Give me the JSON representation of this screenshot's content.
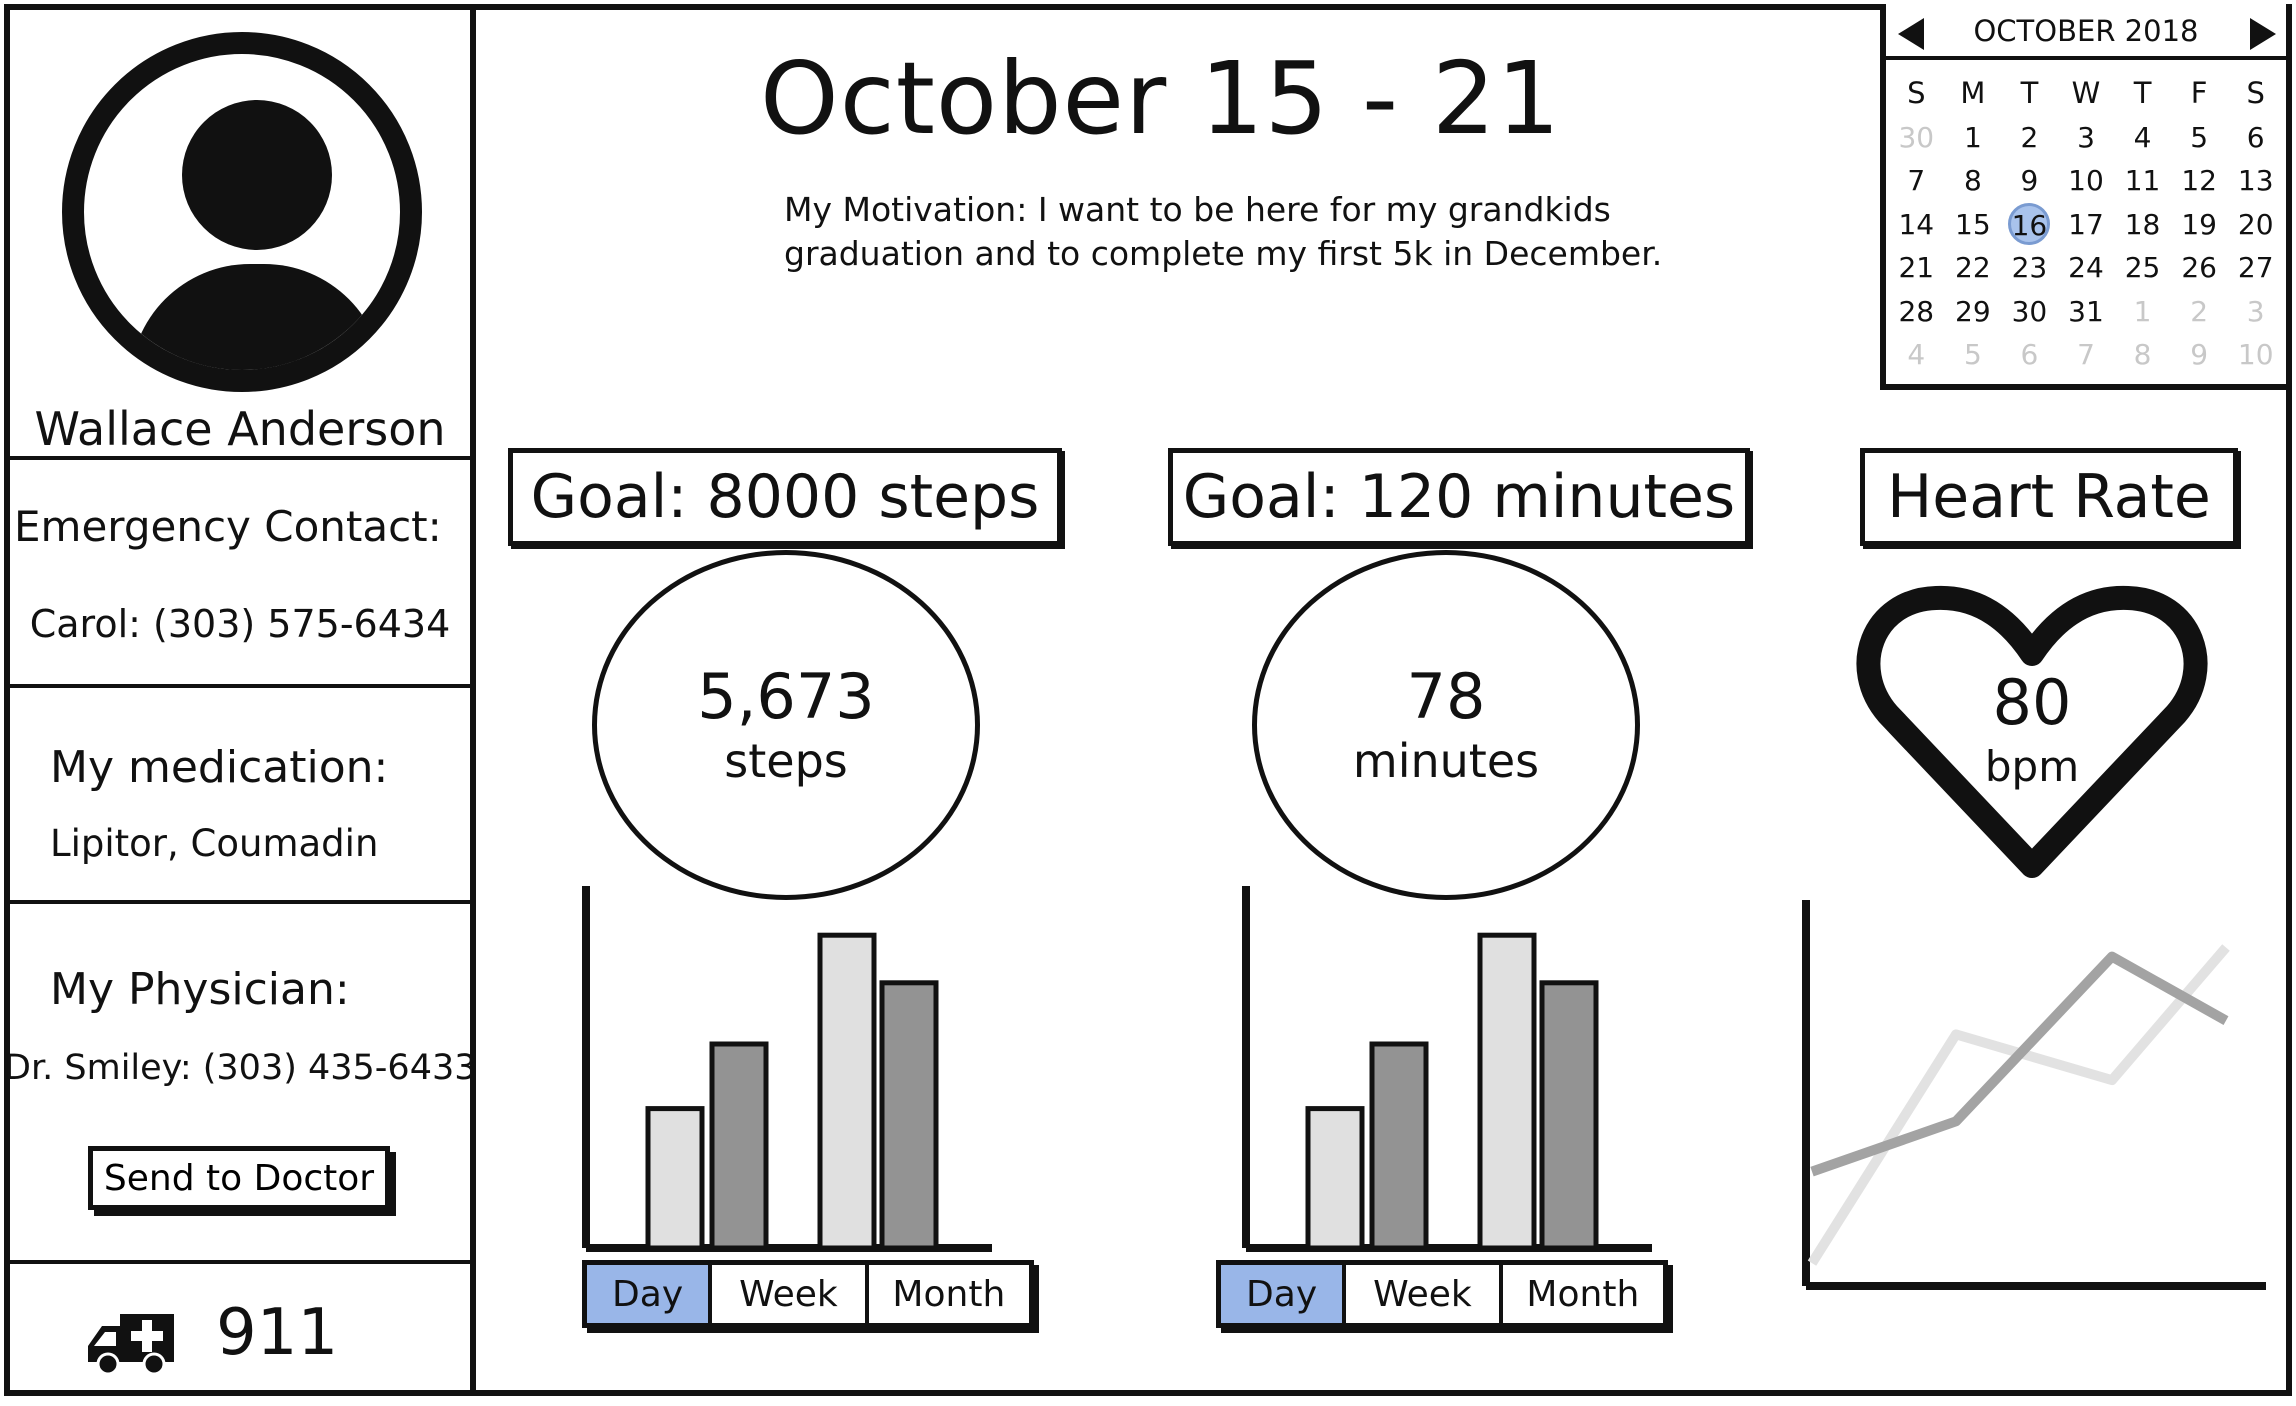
{
  "profile": {
    "name": "Wallace Anderson",
    "emergency_title": "Emergency Contact:",
    "emergency_phone": "Carol: (303) 575-6434",
    "medication_title": "My medication:",
    "medication_list": "Lipitor, Coumadin",
    "physician_title": "My Physician:",
    "physician_phone": "Dr. Smiley: (303) 435-6433",
    "send_button": "Send to Doctor",
    "emergency_number": "911"
  },
  "header": {
    "title": "October 15 - 21",
    "motivation_line1": "My Motivation: I want to be here for my grandkids",
    "motivation_line2": "graduation and to complete my first 5k in December."
  },
  "calendar": {
    "month_label": "OCTOBER 2018",
    "weekdays": [
      "S",
      "M",
      "T",
      "W",
      "T",
      "F",
      "S"
    ],
    "selected_day": 16,
    "days": [
      {
        "d": "30",
        "muted": true
      },
      {
        "d": "1"
      },
      {
        "d": "2"
      },
      {
        "d": "3"
      },
      {
        "d": "4"
      },
      {
        "d": "5"
      },
      {
        "d": "6"
      },
      {
        "d": "7"
      },
      {
        "d": "8"
      },
      {
        "d": "9"
      },
      {
        "d": "10"
      },
      {
        "d": "11"
      },
      {
        "d": "12"
      },
      {
        "d": "13"
      },
      {
        "d": "14"
      },
      {
        "d": "15"
      },
      {
        "d": "16",
        "selected": true
      },
      {
        "d": "17"
      },
      {
        "d": "18"
      },
      {
        "d": "19"
      },
      {
        "d": "20"
      },
      {
        "d": "21"
      },
      {
        "d": "22"
      },
      {
        "d": "23"
      },
      {
        "d": "24"
      },
      {
        "d": "25"
      },
      {
        "d": "26"
      },
      {
        "d": "27"
      },
      {
        "d": "28"
      },
      {
        "d": "29"
      },
      {
        "d": "30"
      },
      {
        "d": "31"
      },
      {
        "d": "1",
        "muted": true
      },
      {
        "d": "2",
        "muted": true
      },
      {
        "d": "3",
        "muted": true
      },
      {
        "d": "4",
        "muted": true
      },
      {
        "d": "5",
        "muted": true
      },
      {
        "d": "6",
        "muted": true
      },
      {
        "d": "7",
        "muted": true
      },
      {
        "d": "8",
        "muted": true
      },
      {
        "d": "9",
        "muted": true
      },
      {
        "d": "10",
        "muted": true
      }
    ]
  },
  "steps": {
    "goal_label": "Goal: 8000 steps",
    "value": "5,673",
    "unit": "steps",
    "tabs": [
      "Day",
      "Week",
      "Month"
    ],
    "active_tab": "Day"
  },
  "minutes": {
    "goal_label": "Goal: 120 minutes",
    "value": "78",
    "unit": "minutes",
    "tabs": [
      "Day",
      "Week",
      "Month"
    ],
    "active_tab": "Day"
  },
  "heart": {
    "title": "Heart Rate",
    "value": "80",
    "unit": "bpm"
  },
  "colors": {
    "light_bar": "#e0e0e0",
    "dark_bar": "#939393",
    "active_tab": "#99b6e8",
    "selected_day": "#a9c3ec",
    "line_light": "#e2e2e2",
    "line_dark": "#a3a3a3"
  },
  "chart_data": [
    {
      "type": "bar",
      "categories": [
        "1",
        "2",
        "3",
        "4"
      ],
      "values": [
        4.1,
        6.0,
        9.2,
        7.8
      ],
      "ylim": [
        0,
        10
      ]
    },
    {
      "type": "bar",
      "categories": [
        "1",
        "2",
        "3",
        "4"
      ],
      "values": [
        4.1,
        6.0,
        9.2,
        7.8
      ],
      "ylim": [
        0,
        10
      ]
    },
    {
      "type": "line",
      "x": [
        0,
        1,
        2,
        3
      ],
      "series": [
        {
          "values": [
            0.5,
            5.5,
            4.5,
            7.4
          ]
        },
        {
          "values": [
            2.5,
            3.6,
            7.2,
            5.8
          ]
        }
      ],
      "ylim": [
        0,
        8
      ]
    }
  ]
}
